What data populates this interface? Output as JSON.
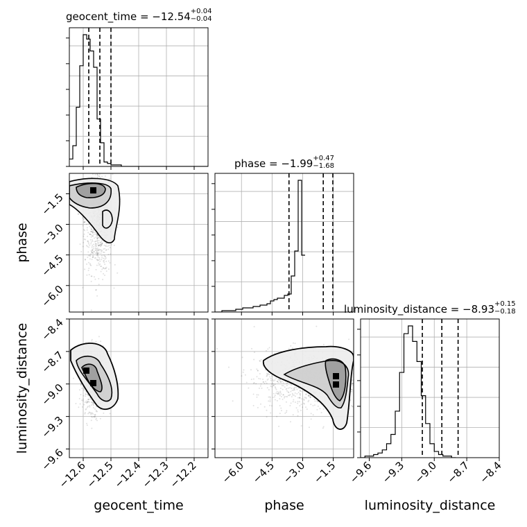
{
  "chart_data": {
    "type": "corner",
    "params": [
      "geocent_time",
      "phase",
      "luminosity_distance"
    ],
    "axis_labels": [
      "geocent_time",
      "phase",
      "luminosity_distance"
    ],
    "ranges": {
      "geocent_time": [
        -12.65,
        -12.15
      ],
      "phase": [
        -7.3,
        -0.5
      ],
      "luminosity_distance": [
        -9.68,
        -8.4
      ]
    },
    "ticks": {
      "geocent_time": [
        -12.6,
        -12.5,
        -12.4,
        -12.3,
        -12.2
      ],
      "phase": [
        -6.0,
        -4.5,
        -3.0,
        -1.5
      ],
      "luminosity_distance": [
        -9.6,
        -9.3,
        -9.0,
        -8.7,
        -8.4
      ]
    },
    "tick_labels": {
      "geocent_time": [
        "−12.6",
        "−12.5",
        "−12.4",
        "−12.3",
        "−12.2"
      ],
      "phase": [
        "−6.0",
        "−4.5",
        "−3.0",
        "−1.5"
      ],
      "luminosity_distance": [
        "−9.6",
        "−9.3",
        "−9.0",
        "−8.7",
        "−8.4"
      ]
    },
    "summaries": [
      {
        "param": "geocent_time",
        "label": "geocent_time = ",
        "median": "−12.54",
        "plus": "+0.04",
        "minus": "−0.04",
        "q16": -12.58,
        "q50": -12.54,
        "q84": -12.5
      },
      {
        "param": "phase",
        "label": "phase = ",
        "median": "−1.99",
        "plus": "+0.47",
        "minus": "−1.68",
        "q16": -3.67,
        "q50": -1.99,
        "q84": -1.52
      },
      {
        "param": "luminosity_distance",
        "label": "luminosity_distance = ",
        "median": "−8.93",
        "plus": "+0.15",
        "minus": "−0.18",
        "q16": -9.11,
        "q50": -8.93,
        "q84": -8.78
      }
    ],
    "histograms": {
      "geocent_time": {
        "bin_start": -12.65,
        "bin_width": 0.0125,
        "counts": [
          5,
          14,
          40,
          68,
          89,
          86,
          78,
          67,
          32,
          16,
          3,
          2,
          1,
          1,
          1,
          0,
          0,
          0,
          0,
          0,
          0,
          0,
          0,
          0,
          0,
          0,
          0,
          0,
          0,
          0,
          0,
          0,
          0,
          0,
          0,
          0,
          0,
          0,
          0,
          0
        ]
      },
      "phase": {
        "bin_start": -7.3,
        "bin_width": 0.17,
        "counts": [
          0,
          0,
          1,
          1,
          1,
          1,
          2,
          2,
          3,
          3,
          3,
          4,
          4,
          5,
          5,
          6,
          8,
          9,
          10,
          10,
          12,
          13,
          26,
          44,
          95,
          41
        ]
      },
      "luminosity_distance": {
        "bin_start": -9.68,
        "bin_width": 0.04,
        "counts": [
          0,
          1,
          1,
          2,
          3,
          5,
          9,
          15,
          30,
          55,
          80,
          85,
          75,
          62,
          40,
          22,
          9,
          4,
          2,
          1,
          1,
          0
        ]
      }
    },
    "grid": true
  }
}
